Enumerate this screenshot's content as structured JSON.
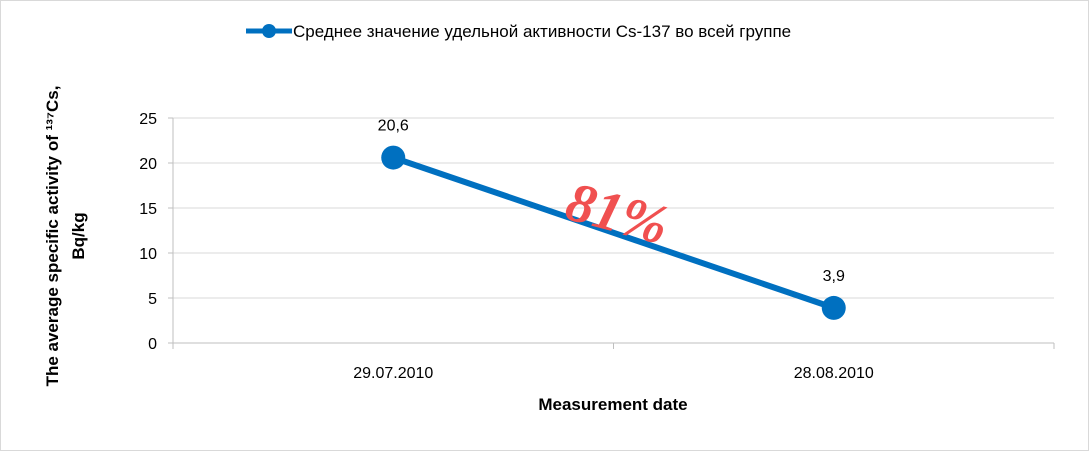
{
  "chart_data": {
    "type": "line",
    "categories": [
      "29.07.2010",
      "28.08.2010"
    ],
    "series": [
      {
        "name": "Среднее значение удельной активности Cs-137 во всей группе",
        "values": [
          20.6,
          3.9
        ],
        "data_labels": [
          "20,6",
          "3,9"
        ],
        "color": "#0070c0"
      }
    ],
    "xlabel": "Measurement date",
    "ylabel_line1": "The average specific activity of ¹³⁷Cs,",
    "ylabel_line2": "Bq/kg",
    "ylim": [
      0,
      25
    ],
    "yticks": [
      "0",
      "5",
      "10",
      "15",
      "20",
      "25"
    ],
    "grid": true,
    "legend_position": "top",
    "annotation": "81%",
    "annotation_color": "#f05050"
  }
}
